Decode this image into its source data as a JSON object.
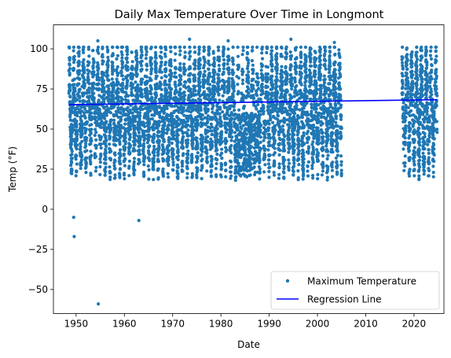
{
  "chart_data": {
    "type": "scatter",
    "title": "Daily Max Temperature Over Time in Longmont",
    "xlabel": "Date",
    "ylabel": "Temp (°F)",
    "xlim": [
      1945.3,
      2026.2
    ],
    "ylim": [
      -65,
      115
    ],
    "x_ticks": [
      1950,
      1960,
      1970,
      1980,
      1990,
      2000,
      2010,
      2020
    ],
    "y_ticks": [
      -50,
      -25,
      0,
      25,
      50,
      75,
      100
    ],
    "legend_position": "lower-right",
    "grid": false,
    "colors": {
      "scatter": "#1f77b4",
      "regression": "#0000ff"
    },
    "series": [
      {
        "name": "Maximum Temperature",
        "type": "scatter",
        "coverage": [
          [
            1948.5,
            2005.0
          ],
          [
            2017.5,
            2024.8
          ]
        ],
        "typical_range": [
          20,
          100
        ],
        "outliers": [
          {
            "x": 1949.5,
            "y": -5
          },
          {
            "x": 1949.6,
            "y": -17
          },
          {
            "x": 1954.6,
            "y": -59
          },
          {
            "x": 1963.0,
            "y": -7
          },
          {
            "x": 1954.5,
            "y": 105
          },
          {
            "x": 1973.5,
            "y": 106
          },
          {
            "x": 1981.5,
            "y": 105
          },
          {
            "x": 1994.5,
            "y": 106
          },
          {
            "x": 2003.5,
            "y": 104
          }
        ]
      },
      {
        "name": "Regression Line",
        "type": "line",
        "x": [
          1948.5,
          2024.8
        ],
        "y": [
          65.2,
          68.3
        ]
      }
    ]
  }
}
